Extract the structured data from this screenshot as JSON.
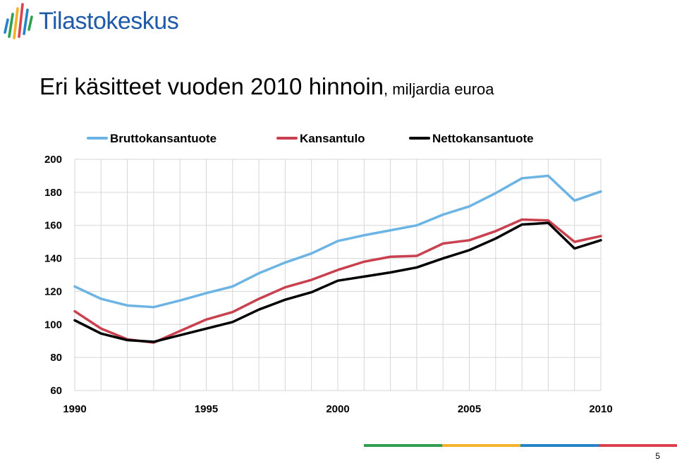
{
  "logo": {
    "text": "Tilastokeskus",
    "icon": "tilastokeskus-bars-logo"
  },
  "title": {
    "main": "Eri käsitteet vuoden 2010 hinnoin",
    "sub": ", miljardia euroa"
  },
  "chart_data": {
    "type": "line",
    "title": "Eri käsitteet vuoden 2010 hinnoin, miljardia euroa",
    "xlabel": "",
    "ylabel": "",
    "xlim": [
      1990,
      2010
    ],
    "ylim": [
      60,
      200
    ],
    "x": [
      1990,
      1991,
      1992,
      1993,
      1994,
      1995,
      1996,
      1997,
      1998,
      1999,
      2000,
      2001,
      2002,
      2003,
      2004,
      2005,
      2006,
      2007,
      2008,
      2009,
      2010
    ],
    "x_ticks": [
      "1990",
      "1995",
      "2000",
      "2005",
      "2010"
    ],
    "y_ticks": [
      "60",
      "80",
      "100",
      "120",
      "140",
      "160",
      "180",
      "200"
    ],
    "grid": true,
    "legend_position": "top",
    "series": [
      {
        "name": "Bruttokansantuote",
        "color": "#6cb4e4",
        "values": [
          123,
          115.5,
          111.5,
          110.5,
          114.5,
          119,
          123,
          131,
          137.5,
          143,
          150.5,
          154,
          157,
          160,
          166.5,
          171.5,
          179.5,
          188.5,
          190,
          175,
          180.5
        ]
      },
      {
        "name": "Kansantulo",
        "color": "#c9404e",
        "values": [
          108,
          97.5,
          91,
          89,
          96,
          103,
          107.5,
          115.5,
          122.5,
          127,
          133,
          138,
          141,
          141.5,
          149,
          151,
          156.5,
          163.5,
          163,
          150,
          153.5
        ]
      },
      {
        "name": "Nettokansantuote",
        "color": "#000000",
        "values": [
          102.5,
          94.5,
          90.5,
          89.5,
          93.5,
          97.5,
          101.5,
          109,
          115,
          119.5,
          126.5,
          129,
          131.5,
          134.5,
          140,
          145,
          152,
          160.5,
          161.5,
          146,
          151
        ]
      }
    ]
  },
  "footer": {
    "colors": [
      "#2e9e4f",
      "#f2b12b",
      "#2583c9",
      "#d9434f"
    ],
    "page_number": "5"
  }
}
